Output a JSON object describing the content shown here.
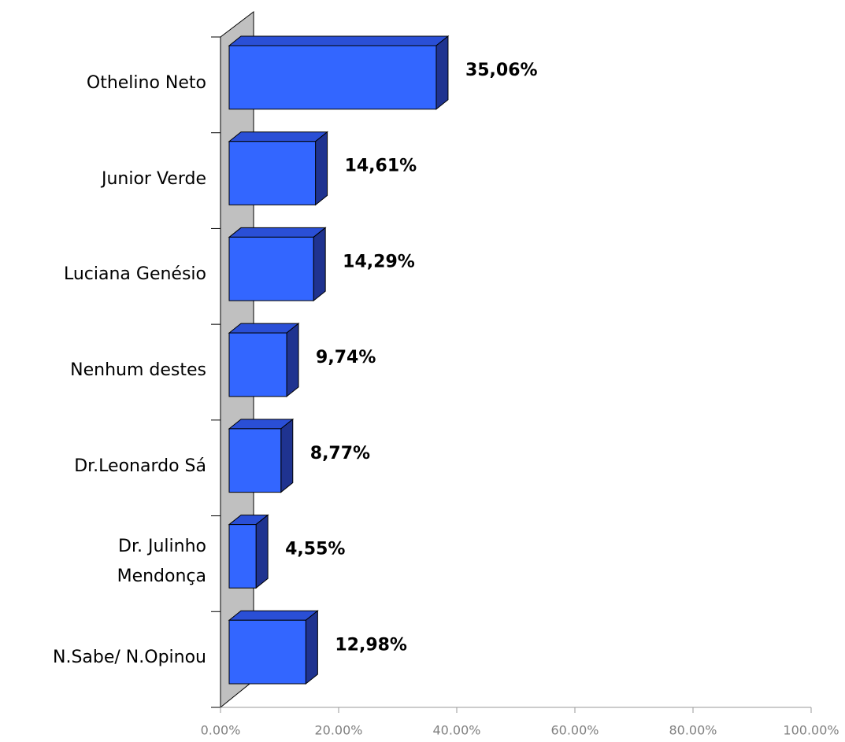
{
  "chart_data": {
    "type": "bar3d-horizontal",
    "categories": [
      "Othelino Neto",
      "Junior Verde",
      "Luciana Genésio",
      "Nenhum destes",
      "Dr.Leonardo Sá",
      "Dr. Julinho\nMendonça",
      "N.Sabe/ N.Opinou"
    ],
    "values": [
      35.06,
      14.61,
      14.29,
      9.74,
      8.77,
      4.55,
      12.98
    ],
    "value_labels": [
      "35,06%",
      "14,61%",
      "14,29%",
      "9,74%",
      "8,77%",
      "4,55%",
      "12,98%"
    ],
    "color": "#3366ff",
    "xlim": [
      0,
      100
    ],
    "xticks": [
      {
        "value": 0,
        "label": "0.00%"
      },
      {
        "value": 20,
        "label": "20.00%"
      },
      {
        "value": 40,
        "label": "40.00%"
      },
      {
        "value": 60,
        "label": "60.00%"
      },
      {
        "value": 80,
        "label": "80.00%"
      },
      {
        "value": 100,
        "label": "100.00%"
      }
    ]
  }
}
